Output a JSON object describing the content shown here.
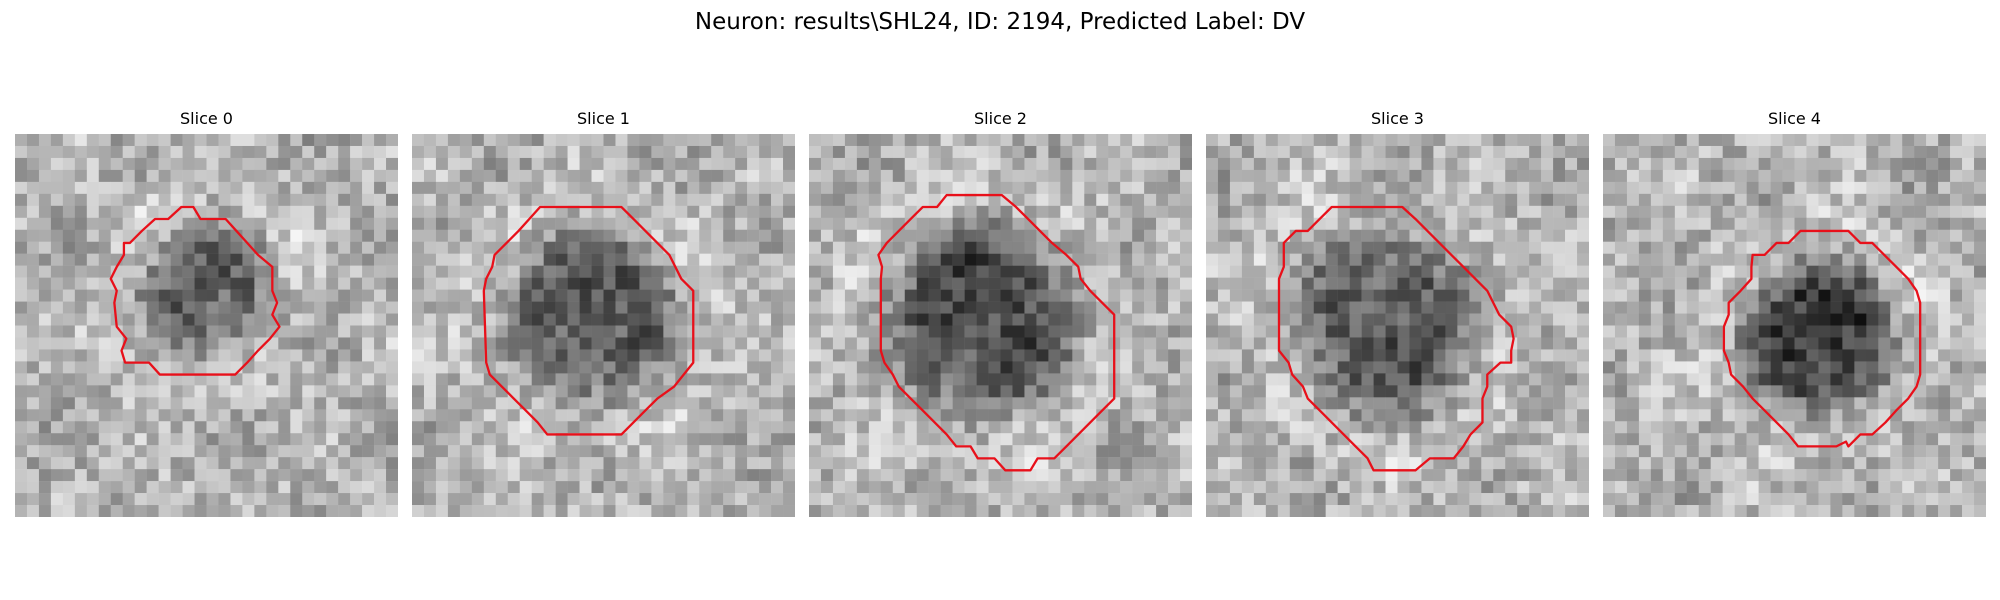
{
  "figure": {
    "title": "Neuron: results\\SHL24, ID: 2194, Predicted Label: DV"
  },
  "style": {
    "contour_color": "#e8101a",
    "colormap": "gray"
  },
  "slices": [
    {
      "title": "Slice 0"
    },
    {
      "title": "Slice 1"
    },
    {
      "title": "Slice 2"
    },
    {
      "title": "Slice 3"
    },
    {
      "title": "Slice 4"
    }
  ]
}
